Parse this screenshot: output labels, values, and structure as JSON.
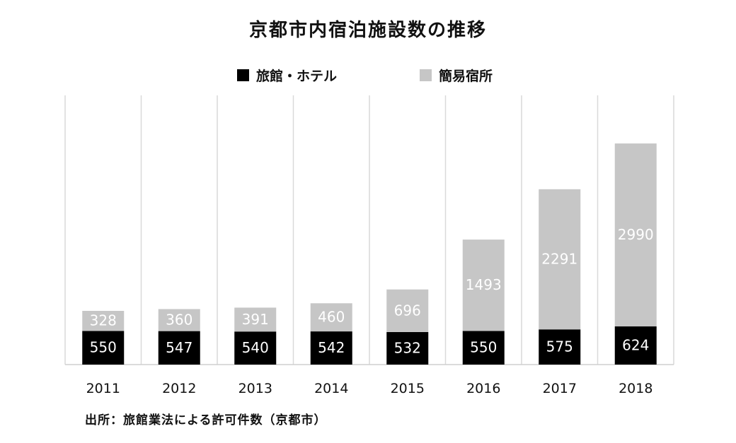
{
  "chart_data": {
    "type": "bar",
    "stacked": true,
    "title": "京都市内宿泊施設数の推移",
    "categories": [
      "2011",
      "2012",
      "2013",
      "2014",
      "2015",
      "2016",
      "2017",
      "2018"
    ],
    "series": [
      {
        "name": "旅館・ホテル",
        "color": "#000000",
        "label_color": "#ffffff",
        "values": [
          550,
          547,
          540,
          542,
          532,
          550,
          575,
          624
        ]
      },
      {
        "name": "簡易宿所",
        "color": "#c6c6c6",
        "label_color": "#ffffff",
        "values": [
          328,
          360,
          391,
          460,
          696,
          1493,
          2291,
          2990
        ]
      }
    ],
    "ylim": [
      0,
      4400
    ],
    "grid": "vertical-separators",
    "legend_position": "top-center",
    "source_note": "出所：旅館業法による許可件数（京都市）"
  }
}
